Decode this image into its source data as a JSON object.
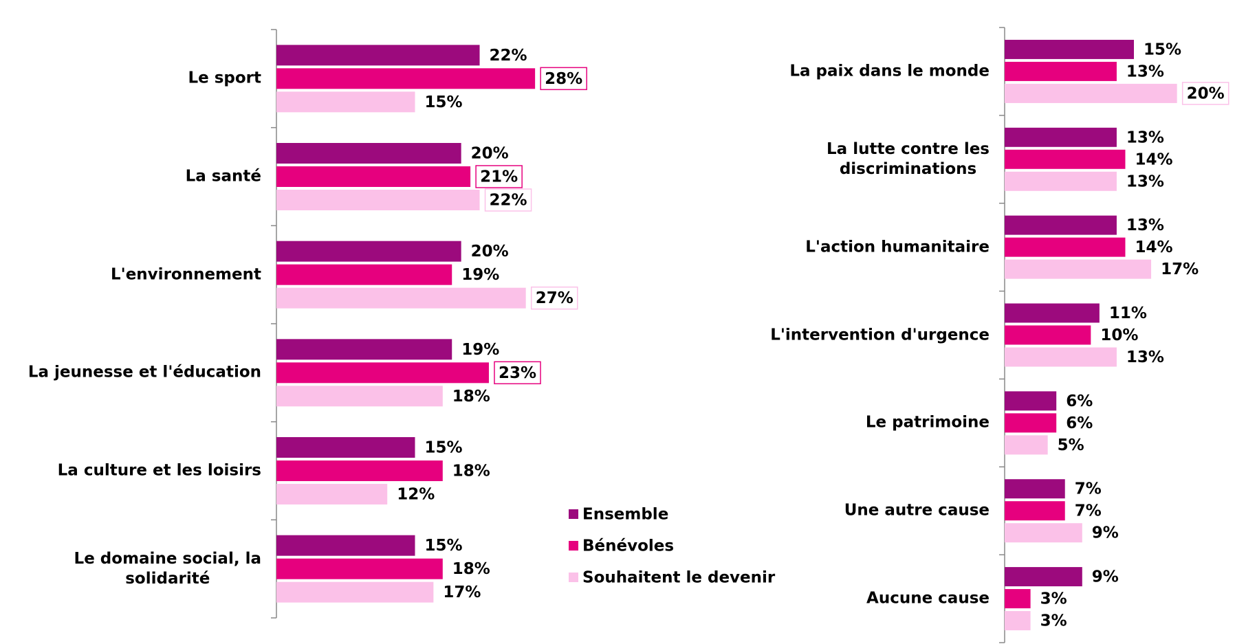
{
  "chart_data": [
    {
      "type": "bar",
      "orientation": "horizontal",
      "xlim": [
        0,
        30
      ],
      "categories": [
        "Le sport",
        "La santé",
        "L'environnement",
        "La jeunesse et l'éducation",
        "La culture et les loisirs",
        "Le domaine social, la\nsolidarité"
      ],
      "series": [
        {
          "name": "Ensemble",
          "color": "#9c0a7d",
          "values": [
            22,
            20,
            20,
            19,
            15,
            15
          ],
          "value_labels": [
            "22%",
            "20%",
            "20%",
            "19%",
            "15%",
            "15%"
          ],
          "highlight": []
        },
        {
          "name": "Bénévoles",
          "color": "#e6007e",
          "values": [
            28,
            21,
            19,
            23,
            18,
            18
          ],
          "value_labels": [
            "28%",
            "21%",
            "19%",
            "23%",
            "18%",
            "18%"
          ],
          "highlight": [
            0,
            1,
            3
          ]
        },
        {
          "name": "Souhaitent le devenir",
          "color": "#fbc1e8",
          "values": [
            15,
            22,
            27,
            18,
            12,
            17
          ],
          "value_labels": [
            "15%",
            "22%",
            "27%",
            "18%",
            "12%",
            "17%"
          ],
          "highlight": [
            1,
            2
          ]
        }
      ]
    },
    {
      "type": "bar",
      "orientation": "horizontal",
      "xlim": [
        0,
        30
      ],
      "categories": [
        "La paix dans le monde",
        "La lutte contre les\ndiscriminations",
        "L'action humanitaire",
        "L'intervention d'urgence",
        "Le patrimoine",
        "Une autre cause",
        "Aucune cause"
      ],
      "series": [
        {
          "values": [
            15,
            13,
            13,
            11,
            6,
            7,
            9
          ],
          "value_labels": [
            "15%",
            "13%",
            "13%",
            "11%",
            "6%",
            "7%",
            "9%"
          ],
          "highlight": []
        },
        {
          "values": [
            13,
            14,
            14,
            10,
            6,
            7,
            3
          ],
          "value_labels": [
            "13%",
            "14%",
            "14%",
            "10%",
            "6%",
            "7%",
            "3%"
          ],
          "highlight": []
        },
        {
          "values": [
            20,
            13,
            17,
            13,
            5,
            9,
            3
          ],
          "value_labels": [
            "20%",
            "13%",
            "17%",
            "13%",
            "5%",
            "9%",
            "3%"
          ],
          "highlight": [
            0
          ]
        }
      ]
    }
  ]
}
